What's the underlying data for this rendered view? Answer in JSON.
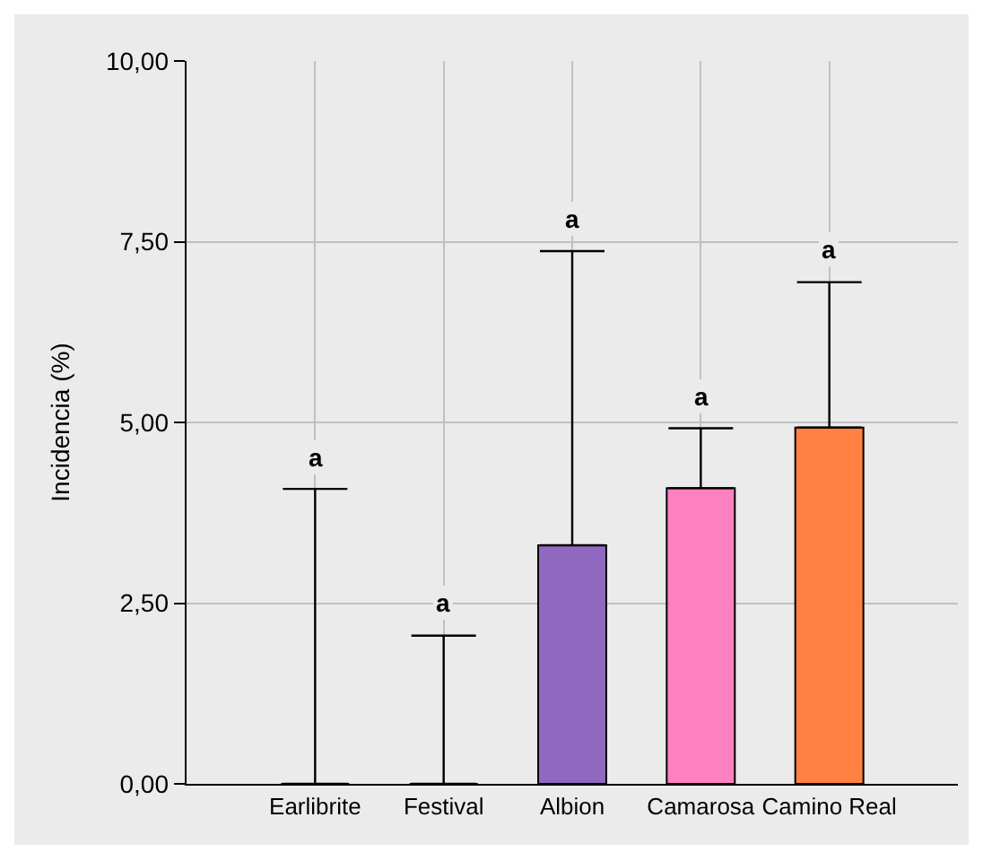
{
  "chart_data": {
    "type": "bar",
    "ylabel": "Incidencia (%)",
    "categories": [
      "Earlibrite",
      "Festival",
      "Albion",
      "Camarosa",
      "Camino Real"
    ],
    "values": [
      0,
      0,
      3.3,
      4.09,
      4.93
    ],
    "colors": [
      "#000000",
      "#000000",
      "#9068c0",
      "#ff80c0",
      "#ff8040"
    ],
    "errors": [
      [
        0,
        4.08
      ],
      [
        0,
        2.05
      ],
      [
        3.3,
        7.37
      ],
      [
        4.09,
        4.92
      ],
      [
        4.93,
        6.94
      ]
    ],
    "annotations": [
      {
        "text": "a",
        "x": "Earlibrite",
        "y": 4.08
      },
      {
        "text": "a",
        "x": "Festival",
        "y": 2.05
      },
      {
        "text": "a",
        "x": "Albion",
        "y": 7.37
      },
      {
        "text": "a",
        "x": "Camarosa",
        "y": 4.92
      },
      {
        "text": "a",
        "x": "Camino Real",
        "y": 6.94
      }
    ],
    "ylim": [
      0,
      10
    ],
    "yticks": [
      {
        "value": 0,
        "label": "0,00"
      },
      {
        "value": 2.5,
        "label": "2,50"
      },
      {
        "value": 5,
        "label": "5,00"
      },
      {
        "value": 7.5,
        "label": "7,50"
      },
      {
        "value": 10,
        "label": "10,00"
      }
    ],
    "grid": true
  }
}
